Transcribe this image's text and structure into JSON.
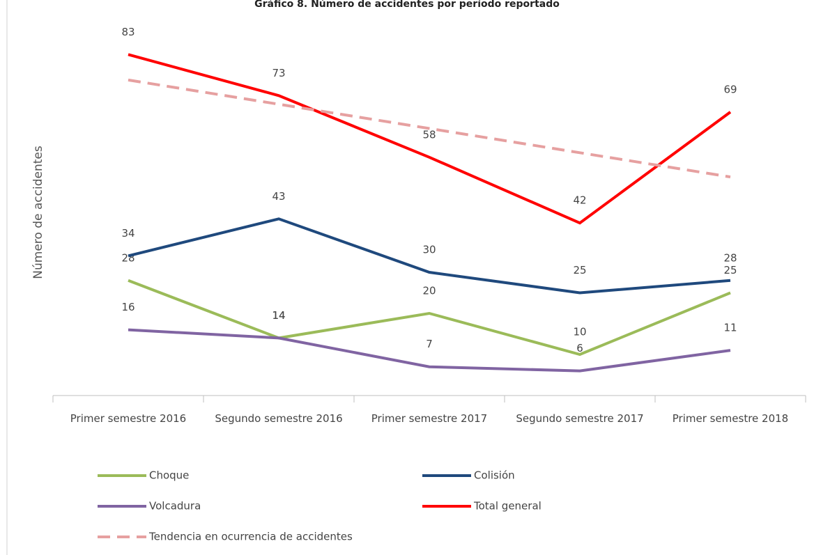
{
  "chart_data": {
    "type": "line",
    "title": "Gráfico 8. Número de accidentes por período reportado",
    "y_label": "Número de accidentes",
    "categories": [
      "Primer semestre 2016",
      "Segundo semestre 2016",
      "Primer semestre 2017",
      "Segundo semestre 2017",
      "Primer semestre 2018"
    ],
    "ylim": [
      0,
      90
    ],
    "legend": "bottom",
    "series": [
      {
        "name": "Choque",
        "color": "#9bbb59",
        "values": [
          28,
          14,
          20,
          10,
          25
        ],
        "labels": true
      },
      {
        "name": "Colisión",
        "color": "#1f497d",
        "values": [
          34,
          43,
          30,
          25,
          28
        ],
        "labels": true
      },
      {
        "name": "Volcadura",
        "color": "#8064a2",
        "values": [
          16,
          14,
          7,
          6,
          11
        ],
        "labels": true
      },
      {
        "name": "Total general",
        "color": "#ff0000",
        "values": [
          83,
          73,
          58,
          42,
          69
        ],
        "labels": true
      },
      {
        "name": "Tendencia en ocurrencia de accidentes",
        "color": "#e6a0a0",
        "dashed": true,
        "values": [
          76.8,
          70.9,
          65,
          59.1,
          53.2
        ],
        "labels": false
      }
    ]
  }
}
